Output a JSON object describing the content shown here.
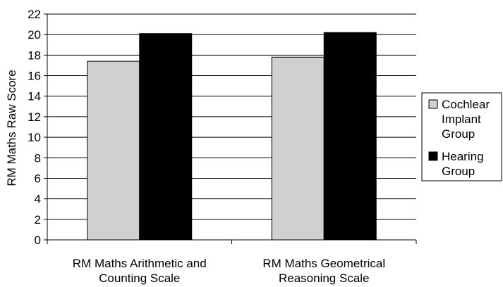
{
  "chart_data": {
    "type": "bar",
    "title": "",
    "xlabel": "",
    "ylabel": "RM Maths Raw Score",
    "ylim": [
      0,
      22
    ],
    "yticks": [
      0,
      2,
      4,
      6,
      8,
      10,
      12,
      14,
      16,
      18,
      20,
      22
    ],
    "grid": true,
    "legend_position": "right",
    "categories": [
      [
        "RM Maths Arithmetic and",
        "Counting Scale"
      ],
      [
        "RM Maths Geometrical",
        "Reasoning Scale"
      ]
    ],
    "series": [
      {
        "name": [
          "Cochlear",
          "Implant",
          "Group"
        ],
        "values": [
          17.4,
          17.8
        ],
        "color": "#d0d0d0"
      },
      {
        "name": [
          "Hearing",
          "Group"
        ],
        "values": [
          20.1,
          20.2
        ],
        "color": "#000000"
      }
    ]
  }
}
